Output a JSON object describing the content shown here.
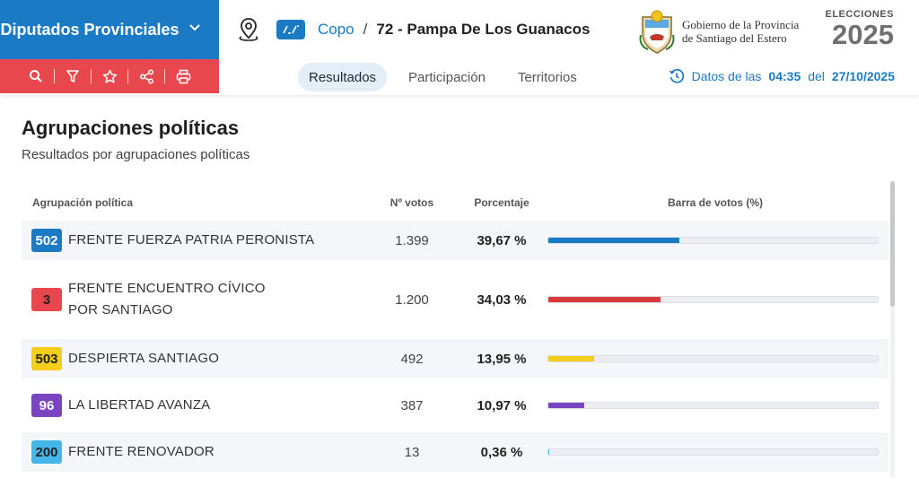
{
  "header": {
    "office_title": "Diputados Provinciales",
    "breadcrumb": {
      "department": "Copo",
      "separator": "/",
      "circuit": "72 - Pampa De Los Guanacos"
    },
    "gov_line1": "Gobierno de la Provincia",
    "gov_line2": "de Santiago del Estero",
    "elections_label": "ELECCIONES",
    "elections_year": "2025"
  },
  "toolbar": {
    "icons": [
      "search-icon",
      "filter-icon",
      "star-icon",
      "share-icon",
      "print-icon"
    ]
  },
  "tabs": [
    {
      "label": "Resultados",
      "active": true
    },
    {
      "label": "Participación",
      "active": false
    },
    {
      "label": "Territorios",
      "active": false
    }
  ],
  "timestamp": {
    "prefix": "Datos de las",
    "time": "04:35",
    "mid": "del",
    "date": "27/10/2025"
  },
  "section": {
    "title": "Agrupaciones políticas",
    "subtitle": "Resultados por agrupaciones políticas"
  },
  "table": {
    "headers": {
      "name": "Agrupación política",
      "votes": "Nº votos",
      "pct": "Porcentaje",
      "bar": "Barra de votos (%)"
    },
    "rows": [
      {
        "number": "502",
        "name": "FRENTE FUERZA PATRIA PERONISTA",
        "votes": "1.399",
        "pct": "39,67 %",
        "share": 39.67,
        "badge_bg": "#1a7bc4",
        "badge_fg": "#ffffff",
        "color": "#1a7bc4"
      },
      {
        "number": "3",
        "name": "FRENTE ENCUENTRO CÍVICO POR SANTIAGO",
        "votes": "1.200",
        "pct": "34,03 %",
        "share": 34.03,
        "badge_bg": "#e8484d",
        "badge_fg": "#222222",
        "color": "#d93a3a"
      },
      {
        "number": "503",
        "name": "DESPIERTA SANTIAGO",
        "votes": "492",
        "pct": "13,95 %",
        "share": 13.95,
        "badge_bg": "#f5cd1a",
        "badge_fg": "#222222",
        "color": "#f5cd1a"
      },
      {
        "number": "96",
        "name": "LA LIBERTAD AVANZA",
        "votes": "387",
        "pct": "10,97 %",
        "share": 10.97,
        "badge_bg": "#7b45c2",
        "badge_fg": "#ffffff",
        "color": "#7b45c2"
      },
      {
        "number": "200",
        "name": "FRENTE RENOVADOR",
        "votes": "13",
        "pct": "0,36 %",
        "share": 0.36,
        "badge_bg": "#45b6e8",
        "badge_fg": "#222222",
        "color": "#45b6e8"
      }
    ]
  }
}
